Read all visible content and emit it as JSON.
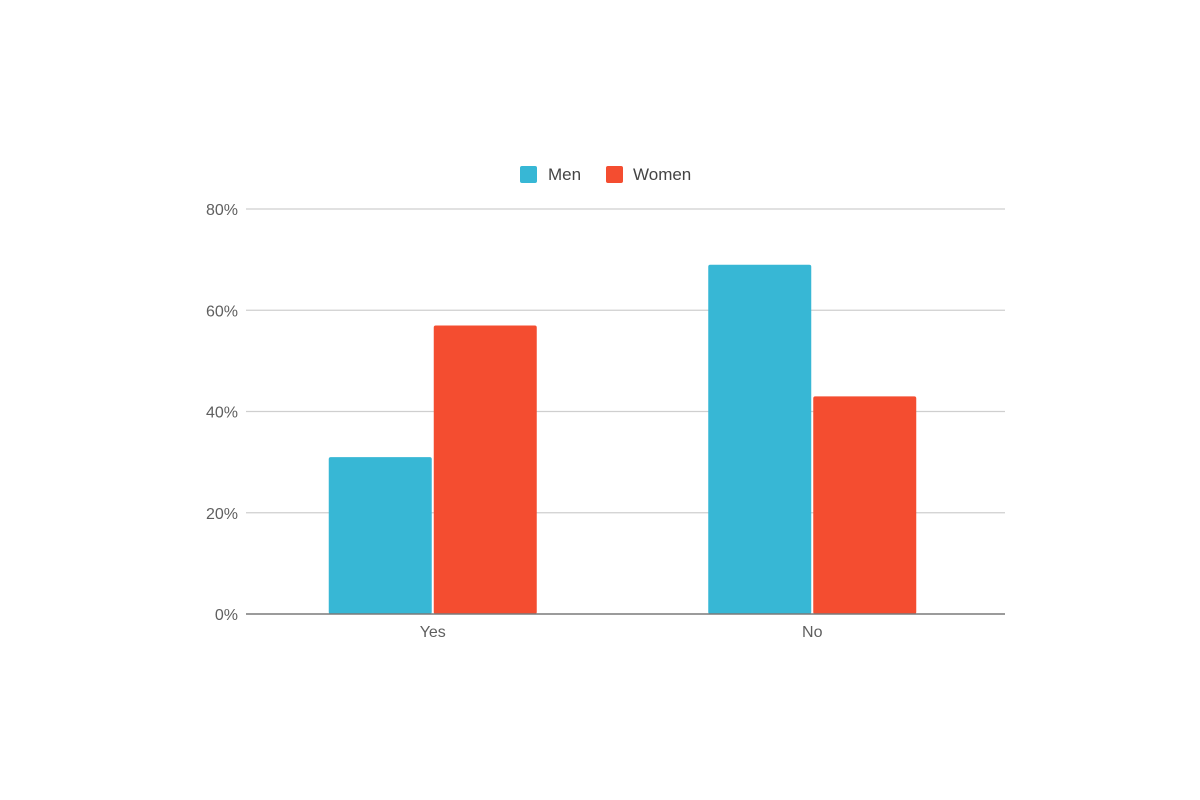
{
  "chart_data": {
    "type": "bar",
    "categories": [
      "Yes",
      "No"
    ],
    "series": [
      {
        "name": "Men",
        "values": [
          31,
          69
        ],
        "color": "#37B7D5"
      },
      {
        "name": "Women",
        "values": [
          57,
          43
        ],
        "color": "#F44D30"
      }
    ],
    "ylim": [
      0,
      80
    ],
    "yticks": [
      0,
      20,
      40,
      60,
      80
    ],
    "ytick_labels": [
      "0%",
      "20%",
      "40%",
      "60%",
      "80%"
    ],
    "grid": true,
    "legend_position": "top-center"
  }
}
